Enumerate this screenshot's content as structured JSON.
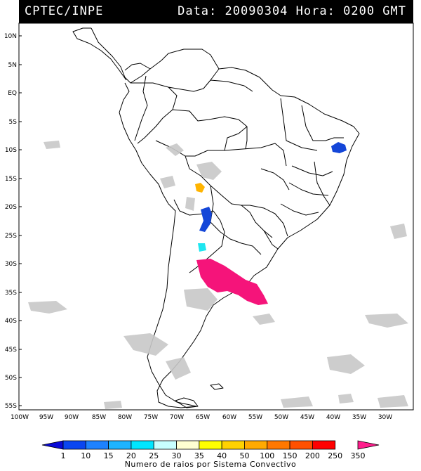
{
  "header": {
    "agency": "CPTEC/INPE",
    "data_label": "Data:",
    "date": "20090304",
    "hora_label": "Hora:",
    "time": "0200 GMT"
  },
  "map": {
    "lat_labels": [
      "10N",
      "5N",
      "EQ",
      "5S",
      "10S",
      "15S",
      "20S",
      "25S",
      "30S",
      "35S",
      "40S",
      "45S",
      "50S",
      "55S"
    ],
    "lon_labels": [
      "100W",
      "95W",
      "90W",
      "85W",
      "80W",
      "75W",
      "70W",
      "65W",
      "60W",
      "55W",
      "50W",
      "45W",
      "40W",
      "35W",
      "30W"
    ],
    "lat_range": [
      10,
      -56
    ],
    "lon_range": [
      -100,
      -28
    ],
    "colors": {
      "cloud": "#c8c8c8",
      "storm_blue": "#1446d8",
      "storm_orange": "#ffb400",
      "storm_cyan": "#1ee6f0",
      "storm_magenta": "#f5147a"
    }
  },
  "legend": {
    "values": [
      "1",
      "10",
      "15",
      "20",
      "25",
      "30",
      "35",
      "40",
      "50",
      "100",
      "150",
      "200",
      "250",
      "350"
    ],
    "colors": [
      "#0a0ad6",
      "#0a46f0",
      "#1e82ff",
      "#1eb4ff",
      "#00e6ff",
      "#c8ffff",
      "#ffffd2",
      "#ffff00",
      "#ffd200",
      "#ffaa00",
      "#ff7800",
      "#ff5000",
      "#ff0000",
      "#ff1e8c"
    ],
    "caption": "Numero de raios por Sistema Convectivo"
  }
}
